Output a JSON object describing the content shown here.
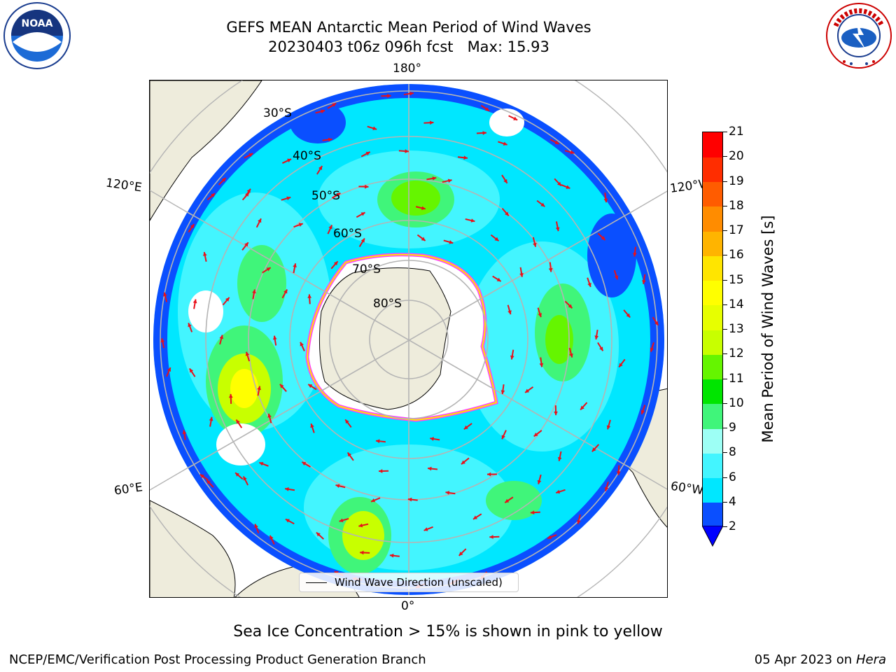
{
  "header": {
    "title_line1": "GEFS MEAN Antarctic Mean Period of Wind Waves",
    "title_line2": "20230403 t06z 096h fcst   Max: 15.93"
  },
  "map": {
    "lon_labels": {
      "top": "180°",
      "bottom": "0°",
      "left_upper": "120°E",
      "left_lower": "60°E",
      "right_upper": "120°W",
      "right_lower": "60°W"
    },
    "lat_labels": [
      "30°S",
      "40°S",
      "50°S",
      "60°S",
      "70°S",
      "80°S"
    ],
    "legend_text": "Wind Wave Direction (unscaled)"
  },
  "colorbar": {
    "label": "Mean Period of Wind Waves [s]",
    "ticks": [
      "2",
      "4",
      "6",
      "8",
      "9",
      "10",
      "11",
      "12",
      "13",
      "14",
      "15",
      "16",
      "17",
      "18",
      "19",
      "20",
      "21"
    ],
    "colors": [
      "#0a4fff",
      "#00e7ff",
      "#43f5ff",
      "#9dfff5",
      "#40f57a",
      "#00e500",
      "#65f500",
      "#c8ff00",
      "#e7ff00",
      "#ffff00",
      "#ffe500",
      "#ffb400",
      "#ff8c00",
      "#ff5c00",
      "#ff2d00",
      "#ff0000"
    ],
    "extend_color": "#0000ff"
  },
  "caption": "Sea Ice Concentration > 15% is shown in pink to yellow",
  "footer": {
    "left": "NCEP/EMC/Verification Post Processing Product Generation Branch",
    "right_date": "05 Apr 2023 on",
    "right_host": "Hera"
  }
}
